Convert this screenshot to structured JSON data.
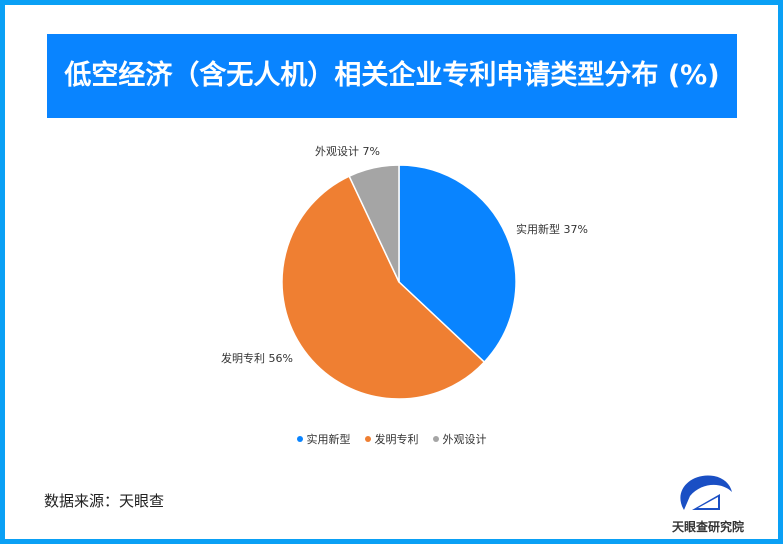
{
  "title": "低空经济（含无人机）相关企业专利申请类型分布 (%)",
  "chart_data": {
    "type": "pie",
    "title": "低空经济（含无人机）相关企业专利申请类型分布 (%)",
    "categories": [
      "实用新型",
      "发明专利",
      "外观设计"
    ],
    "values": [
      37,
      56,
      7
    ],
    "data_labels": [
      "实用新型 37%",
      "发明专利 56%",
      "外观设计 7%"
    ],
    "colors": [
      "#0984ff",
      "#ef7f32",
      "#a5a5a5"
    ],
    "legend_position": "bottom"
  },
  "source": "数据来源：天眼查",
  "logo_text": "天眼查研究院"
}
